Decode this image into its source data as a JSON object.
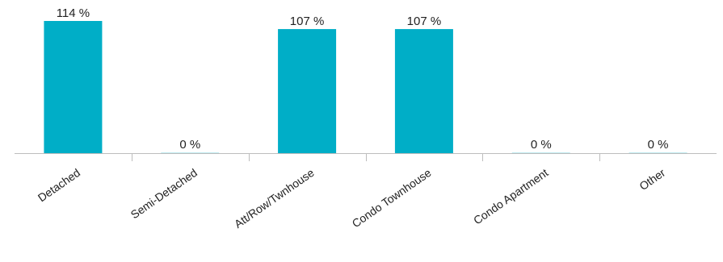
{
  "chart_data": {
    "type": "bar",
    "title": "",
    "xlabel": "",
    "ylabel": "",
    "categories": [
      "Detached",
      "Semi-Detached",
      "Att/Row/Twnhouse",
      "Condo Townhouse",
      "Condo Apartment",
      "Other"
    ],
    "values": [
      114,
      0,
      107,
      107,
      0,
      0
    ],
    "value_labels": [
      "114 %",
      "0 %",
      "107 %",
      "107 %",
      "0 %",
      "0 %"
    ],
    "value_suffix": " %",
    "ylim": [
      0,
      114
    ],
    "grid": false,
    "legend": "none",
    "colors": {
      "bar": "#00aec7",
      "axis": "#bdbdbd",
      "text": "#222222"
    }
  }
}
